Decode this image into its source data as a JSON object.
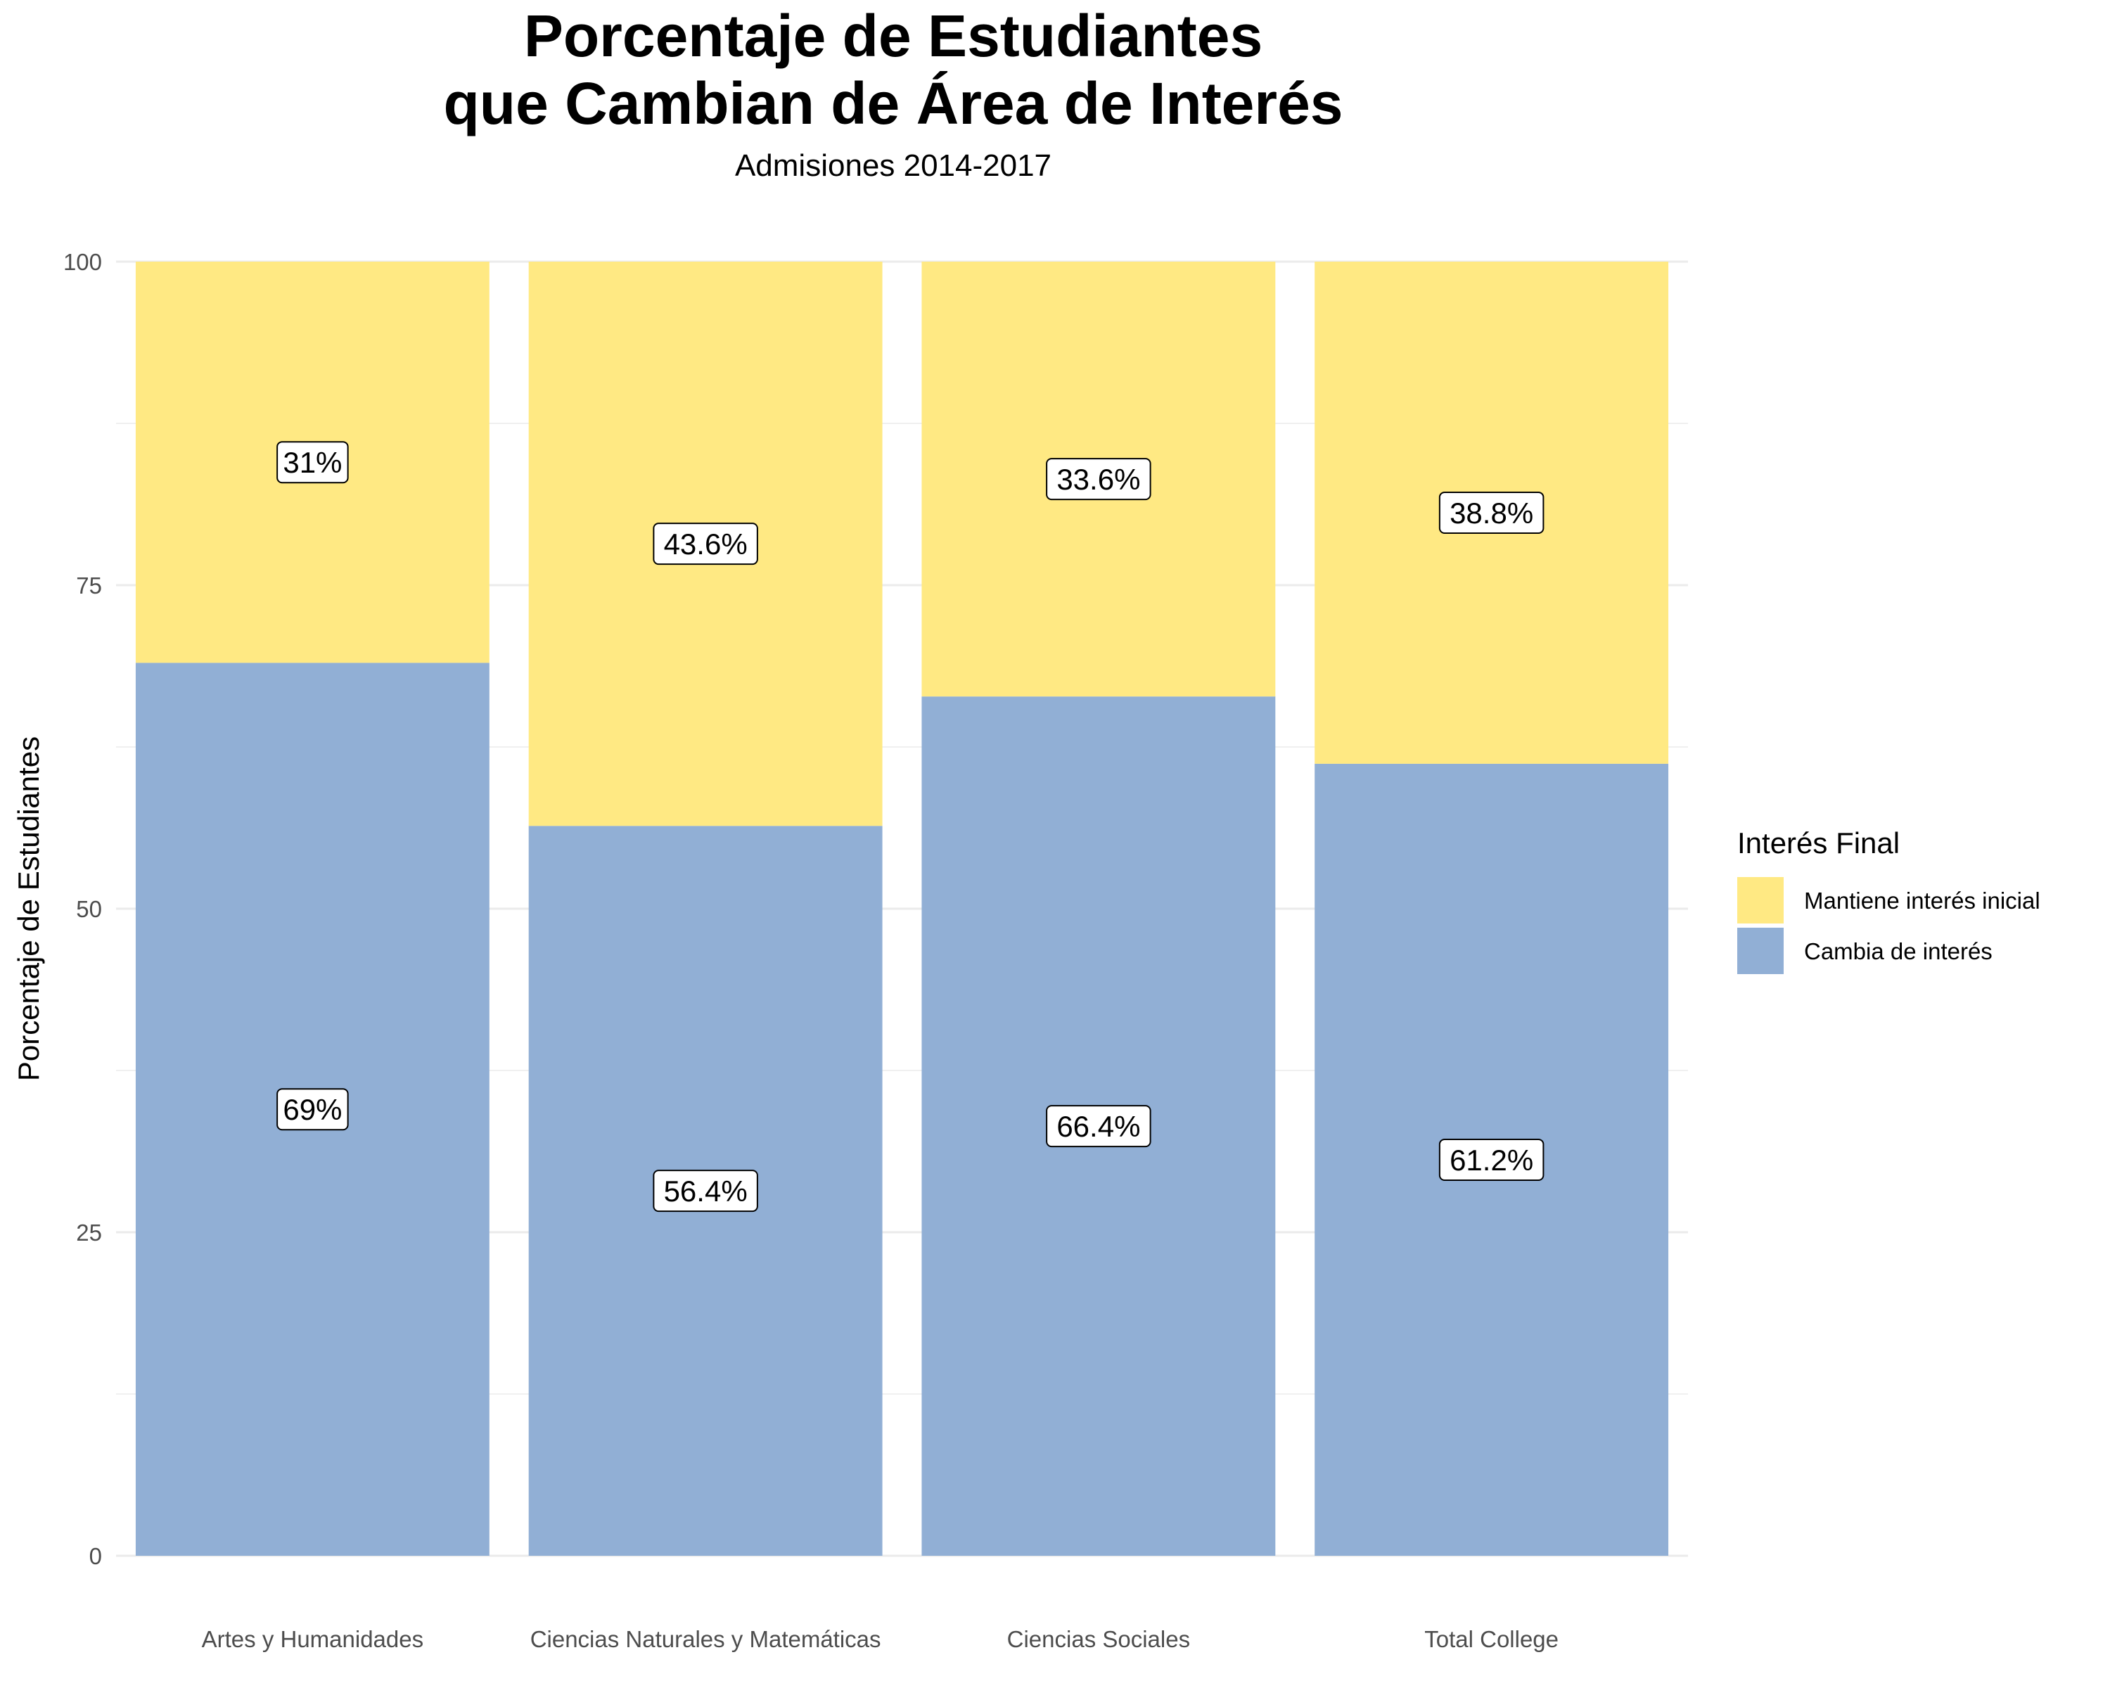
{
  "chart_data": {
    "type": "bar",
    "stacked": true,
    "title_lines": [
      "Porcentaje de Estudiantes",
      "que Cambian de Área de Interés"
    ],
    "subtitle": "Admisiones 2014-2017",
    "xlabel": "",
    "ylabel": "Porcentaje de Estudiantes",
    "ylim": [
      0,
      100
    ],
    "yticks": [
      0,
      25,
      50,
      75,
      100
    ],
    "grid": true,
    "legend": {
      "title": "Interés Final",
      "position": "right"
    },
    "categories": [
      "Artes y Humanidades",
      "Ciencias Naturales y Matemáticas",
      "Ciencias Sociales",
      "Total College"
    ],
    "series": [
      {
        "name": "Cambia de interés",
        "color": "#91afd5",
        "values": [
          69,
          56.4,
          66.4,
          61.2
        ],
        "labels": [
          "69%",
          "56.4%",
          "66.4%",
          "61.2%"
        ]
      },
      {
        "name": "Mantiene interés inicial",
        "color": "#ffe983",
        "values": [
          31,
          43.6,
          33.6,
          38.8
        ],
        "labels": [
          "31%",
          "43.6%",
          "33.6%",
          "38.8%"
        ]
      }
    ],
    "legend_order": [
      "Mantiene interés inicial",
      "Cambia de interés"
    ]
  }
}
